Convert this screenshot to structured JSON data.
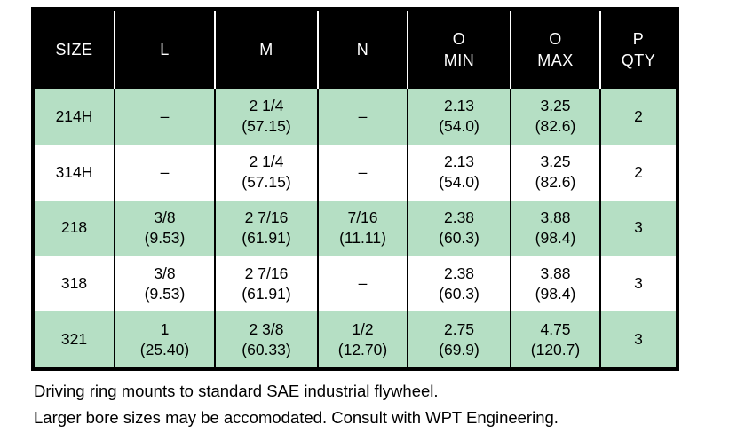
{
  "colors": {
    "row_green": "#b5dfc4",
    "header_bg": "#000000",
    "header_text": "#ffffff",
    "body_text": "#000000"
  },
  "table": {
    "columns": [
      {
        "id": "size",
        "lines": [
          "SIZE"
        ]
      },
      {
        "id": "l",
        "lines": [
          "L"
        ]
      },
      {
        "id": "m",
        "lines": [
          "M"
        ]
      },
      {
        "id": "n",
        "lines": [
          "N"
        ]
      },
      {
        "id": "o-min",
        "lines": [
          "O",
          "MIN"
        ]
      },
      {
        "id": "o-max",
        "lines": [
          "O",
          "MAX"
        ]
      },
      {
        "id": "p-qty",
        "lines": [
          "P",
          "QTY"
        ]
      }
    ],
    "rows": [
      {
        "shade": "green",
        "cells": [
          [
            "214H"
          ],
          [
            "–"
          ],
          [
            "2 1/4",
            "(57.15)"
          ],
          [
            "–"
          ],
          [
            "2.13",
            "(54.0)"
          ],
          [
            "3.25",
            "(82.6)"
          ],
          [
            "2"
          ]
        ]
      },
      {
        "shade": "white",
        "cells": [
          [
            "314H"
          ],
          [
            "–"
          ],
          [
            "2 1/4",
            "(57.15)"
          ],
          [
            "–"
          ],
          [
            "2.13",
            "(54.0)"
          ],
          [
            "3.25",
            "(82.6)"
          ],
          [
            "2"
          ]
        ]
      },
      {
        "shade": "green",
        "cells": [
          [
            "218"
          ],
          [
            "3/8",
            "(9.53)"
          ],
          [
            "2 7/16",
            "(61.91)"
          ],
          [
            "7/16",
            "(11.11)"
          ],
          [
            "2.38",
            "(60.3)"
          ],
          [
            "3.88",
            "(98.4)"
          ],
          [
            "3"
          ]
        ]
      },
      {
        "shade": "white",
        "cells": [
          [
            "318"
          ],
          [
            "3/8",
            "(9.53)"
          ],
          [
            "2 7/16",
            "(61.91)"
          ],
          [
            "–"
          ],
          [
            "2.38",
            "(60.3)"
          ],
          [
            "3.88",
            "(98.4)"
          ],
          [
            "3"
          ]
        ]
      },
      {
        "shade": "green",
        "cells": [
          [
            "321"
          ],
          [
            "1",
            "(25.40)"
          ],
          [
            "2 3/8",
            "(60.33)"
          ],
          [
            "1/2",
            "(12.70)"
          ],
          [
            "2.75",
            "(69.9)"
          ],
          [
            "4.75",
            "(120.7)"
          ],
          [
            "3"
          ]
        ]
      }
    ]
  },
  "notes": [
    "Driving ring mounts to standard SAE industrial flywheel.",
    "Larger bore sizes may be accomodated. Consult with WPT Engineering."
  ]
}
